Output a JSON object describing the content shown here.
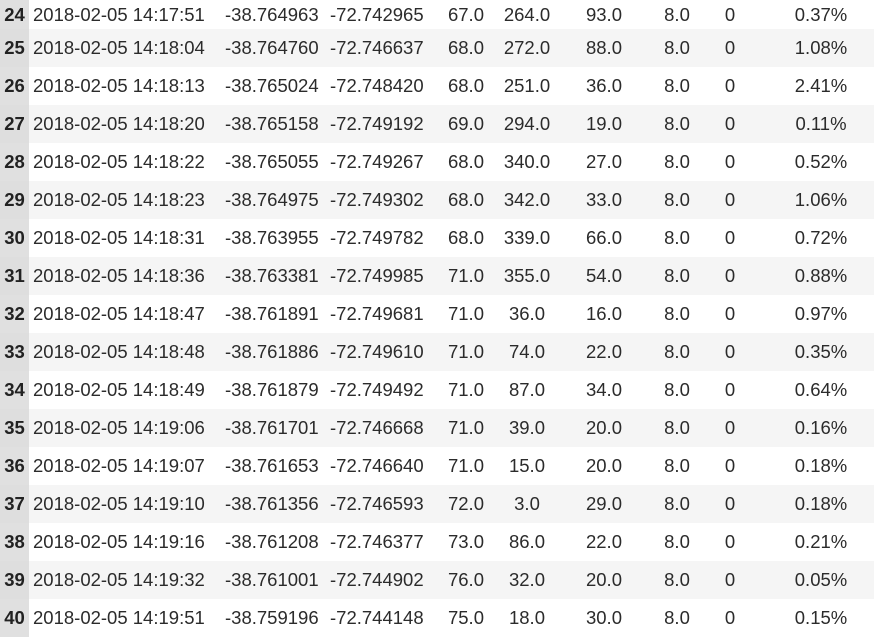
{
  "rows": [
    {
      "idx": "24",
      "timestamp": "2018-02-05 14:17:51",
      "lat": "-38.764963",
      "lon": "-72.742965",
      "c5": "67.0",
      "c6": "264.0",
      "c7": "93.0",
      "c8": "8.0",
      "c9": "0",
      "c10": "0.37%"
    },
    {
      "idx": "25",
      "timestamp": "2018-02-05 14:18:04",
      "lat": "-38.764760",
      "lon": "-72.746637",
      "c5": "68.0",
      "c6": "272.0",
      "c7": "88.0",
      "c8": "8.0",
      "c9": "0",
      "c10": "1.08%"
    },
    {
      "idx": "26",
      "timestamp": "2018-02-05 14:18:13",
      "lat": "-38.765024",
      "lon": "-72.748420",
      "c5": "68.0",
      "c6": "251.0",
      "c7": "36.0",
      "c8": "8.0",
      "c9": "0",
      "c10": "2.41%"
    },
    {
      "idx": "27",
      "timestamp": "2018-02-05 14:18:20",
      "lat": "-38.765158",
      "lon": "-72.749192",
      "c5": "69.0",
      "c6": "294.0",
      "c7": "19.0",
      "c8": "8.0",
      "c9": "0",
      "c10": "0.11%"
    },
    {
      "idx": "28",
      "timestamp": "2018-02-05 14:18:22",
      "lat": "-38.765055",
      "lon": "-72.749267",
      "c5": "68.0",
      "c6": "340.0",
      "c7": "27.0",
      "c8": "8.0",
      "c9": "0",
      "c10": "0.52%"
    },
    {
      "idx": "29",
      "timestamp": "2018-02-05 14:18:23",
      "lat": "-38.764975",
      "lon": "-72.749302",
      "c5": "68.0",
      "c6": "342.0",
      "c7": "33.0",
      "c8": "8.0",
      "c9": "0",
      "c10": "1.06%"
    },
    {
      "idx": "30",
      "timestamp": "2018-02-05 14:18:31",
      "lat": "-38.763955",
      "lon": "-72.749782",
      "c5": "68.0",
      "c6": "339.0",
      "c7": "66.0",
      "c8": "8.0",
      "c9": "0",
      "c10": "0.72%"
    },
    {
      "idx": "31",
      "timestamp": "2018-02-05 14:18:36",
      "lat": "-38.763381",
      "lon": "-72.749985",
      "c5": "71.0",
      "c6": "355.0",
      "c7": "54.0",
      "c8": "8.0",
      "c9": "0",
      "c10": "0.88%"
    },
    {
      "idx": "32",
      "timestamp": "2018-02-05 14:18:47",
      "lat": "-38.761891",
      "lon": "-72.749681",
      "c5": "71.0",
      "c6": "36.0",
      "c7": "16.0",
      "c8": "8.0",
      "c9": "0",
      "c10": "0.97%"
    },
    {
      "idx": "33",
      "timestamp": "2018-02-05 14:18:48",
      "lat": "-38.761886",
      "lon": "-72.749610",
      "c5": "71.0",
      "c6": "74.0",
      "c7": "22.0",
      "c8": "8.0",
      "c9": "0",
      "c10": "0.35%"
    },
    {
      "idx": "34",
      "timestamp": "2018-02-05 14:18:49",
      "lat": "-38.761879",
      "lon": "-72.749492",
      "c5": "71.0",
      "c6": "87.0",
      "c7": "34.0",
      "c8": "8.0",
      "c9": "0",
      "c10": "0.64%"
    },
    {
      "idx": "35",
      "timestamp": "2018-02-05 14:19:06",
      "lat": "-38.761701",
      "lon": "-72.746668",
      "c5": "71.0",
      "c6": "39.0",
      "c7": "20.0",
      "c8": "8.0",
      "c9": "0",
      "c10": "0.16%"
    },
    {
      "idx": "36",
      "timestamp": "2018-02-05 14:19:07",
      "lat": "-38.761653",
      "lon": "-72.746640",
      "c5": "71.0",
      "c6": "15.0",
      "c7": "20.0",
      "c8": "8.0",
      "c9": "0",
      "c10": "0.18%"
    },
    {
      "idx": "37",
      "timestamp": "2018-02-05 14:19:10",
      "lat": "-38.761356",
      "lon": "-72.746593",
      "c5": "72.0",
      "c6": "3.0",
      "c7": "29.0",
      "c8": "8.0",
      "c9": "0",
      "c10": "0.18%"
    },
    {
      "idx": "38",
      "timestamp": "2018-02-05 14:19:16",
      "lat": "-38.761208",
      "lon": "-72.746377",
      "c5": "73.0",
      "c6": "86.0",
      "c7": "22.0",
      "c8": "8.0",
      "c9": "0",
      "c10": "0.21%"
    },
    {
      "idx": "39",
      "timestamp": "2018-02-05 14:19:32",
      "lat": "-38.761001",
      "lon": "-72.744902",
      "c5": "76.0",
      "c6": "32.0",
      "c7": "20.0",
      "c8": "8.0",
      "c9": "0",
      "c10": "0.05%"
    },
    {
      "idx": "40",
      "timestamp": "2018-02-05 14:19:51",
      "lat": "-38.759196",
      "lon": "-72.744148",
      "c5": "75.0",
      "c6": "18.0",
      "c7": "30.0",
      "c8": "8.0",
      "c9": "0",
      "c10": "0.15%"
    }
  ]
}
